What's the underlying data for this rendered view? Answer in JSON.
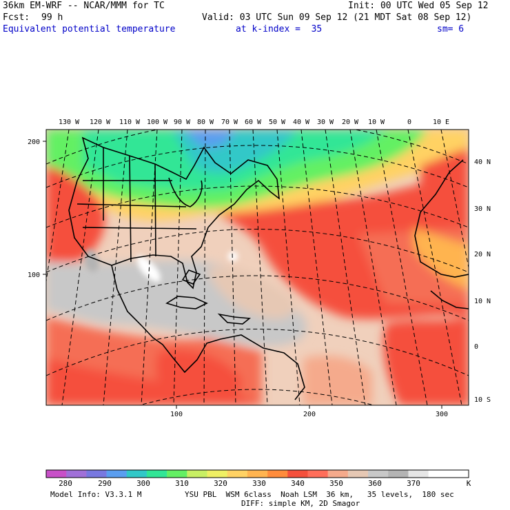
{
  "header": {
    "model": "36km EM-WRF -- NCAR/MMM for TC",
    "init": "Init: 00 UTC Wed 05 Sep 12",
    "fcst_label": "Fcst:",
    "fcst_value": "99 h",
    "valid": "Valid: 03 UTC Sun 09 Sep 12 (21 MDT Sat 08 Sep 12)",
    "field": "Equivalent potential temperature",
    "level": "at k-index =  35",
    "smoothing": "sm= 6"
  },
  "map": {
    "top_lon_labels": [
      "130 W",
      "120 W",
      "110 W",
      "100 W",
      "90 W",
      "80 W",
      "70 W",
      "60 W",
      "50 W",
      "40 W",
      "30 W",
      "20 W",
      "10 W",
      "0",
      "10 E"
    ],
    "right_lat_labels": [
      "40 N",
      "30 N",
      "20 N",
      "10 N",
      "0",
      "10 S"
    ],
    "left_grid_labels": [
      "200",
      "100"
    ],
    "bottom_grid_labels": [
      "100",
      "200",
      "300"
    ]
  },
  "colorbar": {
    "colors": [
      "#c850c8",
      "#a070d8",
      "#7878e0",
      "#5a9ef0",
      "#32c8c8",
      "#32e696",
      "#64f064",
      "#c8f064",
      "#f0f064",
      "#ffd264",
      "#ffb450",
      "#ff8c3c",
      "#f5503c",
      "#ff6e5a",
      "#f5aa8c",
      "#e6c8b4",
      "#c8c8c8",
      "#b4b4b4",
      "#e6e6e6",
      "#ffffff",
      "#ffffff"
    ],
    "tick_labels": [
      "280",
      "290",
      "300",
      "310",
      "320",
      "330",
      "340",
      "350",
      "360",
      "370"
    ],
    "unit": "K"
  },
  "footer": {
    "model_info": "Model Info: V3.3.1 M",
    "physics": "YSU PBL  WSM 6class  Noah LSM  36 km,   35 levels,  180 sec",
    "diffusion": "DIFF: simple KM, 2D Smagor"
  },
  "colors": {
    "title_blue": "#0000c8",
    "warm_red": "#f5503c",
    "tan": "#e6c8b4",
    "gray": "#c8c8c8",
    "green": "#64f064",
    "teal": "#32e696"
  }
}
